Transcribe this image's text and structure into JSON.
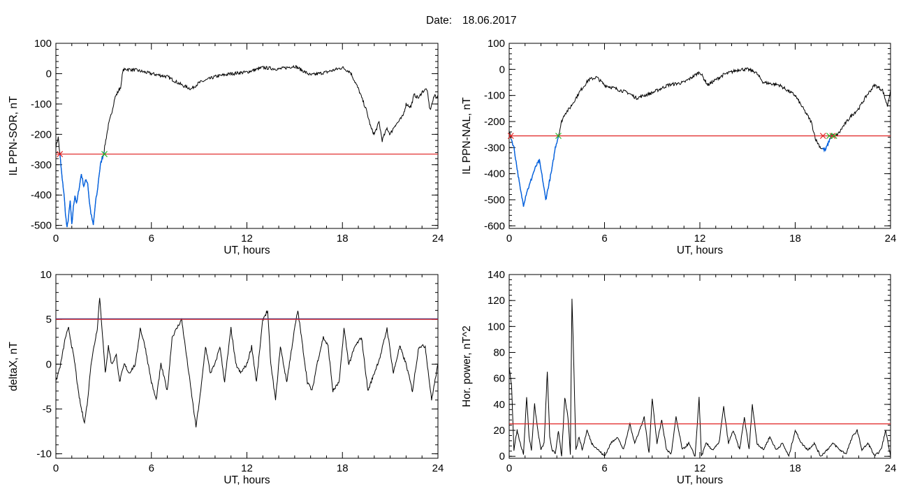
{
  "header": {
    "date_label": "Date:",
    "date_value": "18.06.2017"
  },
  "colors": {
    "threshold": "#e02020",
    "event_trace": "#0060e0",
    "trace": "#000000",
    "start_marker": "#e02020",
    "end_marker": "#20b020"
  },
  "chart_data": [
    {
      "id": "il-sor",
      "type": "line",
      "xlabel": "UT, hours",
      "ylabel": "IL PPN-SOR, nT",
      "xlim": [
        0,
        24
      ],
      "ylim": [
        -510,
        100
      ],
      "xticks": [
        "0",
        "6",
        "12",
        "18",
        "24"
      ],
      "yticks": [
        "100",
        "0",
        "-100",
        "-200",
        "-300",
        "-400",
        "-500"
      ],
      "ytick_values": [
        100,
        0,
        -100,
        -200,
        -300,
        -400,
        -500
      ],
      "threshold": -265,
      "x": [
        0,
        0.15,
        0.25,
        0.4,
        0.5,
        0.6,
        0.7,
        0.8,
        0.9,
        1.0,
        1.1,
        1.2,
        1.3,
        1.45,
        1.6,
        1.75,
        1.9,
        2.0,
        2.1,
        2.2,
        2.35,
        2.5,
        2.6,
        2.7,
        2.8,
        2.9,
        3.0,
        3.1,
        3.3,
        3.5,
        3.7,
        3.9,
        4.1,
        4.2,
        4.4,
        5,
        6,
        7,
        7.5,
        8,
        8.5,
        9,
        9.5,
        10,
        11,
        12,
        13,
        14,
        15,
        15.5,
        16,
        17,
        18,
        18.5,
        19,
        19.5,
        19.8,
        20,
        20.3,
        20.5,
        20.8,
        21,
        21.3,
        21.5,
        21.8,
        22,
        22.3,
        22.5,
        22.8,
        23,
        23.3,
        23.5,
        23.8,
        24
      ],
      "y": [
        -240,
        -210,
        -265,
        -350,
        -390,
        -460,
        -510,
        -470,
        -420,
        -500,
        -440,
        -400,
        -430,
        -380,
        -330,
        -370,
        -350,
        -360,
        -420,
        -460,
        -500,
        -420,
        -390,
        -340,
        -300,
        -280,
        -265,
        -230,
        -170,
        -130,
        -80,
        -60,
        -40,
        10,
        15,
        12,
        0,
        -10,
        -25,
        -40,
        -50,
        -30,
        -20,
        -10,
        0,
        5,
        20,
        15,
        25,
        10,
        -5,
        5,
        20,
        5,
        -50,
        -120,
        -180,
        -200,
        -160,
        -220,
        -180,
        -200,
        -170,
        -160,
        -140,
        -100,
        -110,
        -70,
        -80,
        -60,
        -50,
        -120,
        -70,
        -80
      ],
      "events": [
        [
          0.25,
          3.05
        ]
      ],
      "start_markers": [
        0.25
      ],
      "end_markers": [
        3.05
      ]
    },
    {
      "id": "il-nal",
      "type": "line",
      "xlabel": "UT, hours",
      "ylabel": "IL PPN-NAL, nT",
      "xlim": [
        0,
        24
      ],
      "ylim": [
        -610,
        100
      ],
      "xticks": [
        "0",
        "6",
        "12",
        "18",
        "24"
      ],
      "yticks": [
        "100",
        "0",
        "-100",
        "-200",
        "-300",
        "-400",
        "-500",
        "-600"
      ],
      "ytick_values": [
        100,
        0,
        -100,
        -200,
        -300,
        -400,
        -500,
        -600
      ],
      "threshold": -255,
      "x": [
        0,
        0.15,
        0.3,
        0.5,
        0.7,
        0.9,
        1.1,
        1.3,
        1.5,
        1.7,
        1.9,
        2.1,
        2.3,
        2.5,
        2.7,
        2.9,
        3.1,
        3.3,
        3.5,
        3.8,
        4,
        4.3,
        4.5,
        5,
        5.5,
        6,
        6.5,
        7,
        7.5,
        8,
        8.5,
        9,
        10,
        11,
        12,
        12.5,
        13,
        13.5,
        14,
        14.5,
        15,
        15.5,
        16,
        17,
        18,
        18.5,
        19,
        19.3,
        19.6,
        19.9,
        20.1,
        20.3,
        20.5,
        20.8,
        21,
        21.5,
        22,
        22.5,
        23,
        23.5,
        23.8,
        24
      ],
      "y": [
        -240,
        -270,
        -300,
        -380,
        -460,
        -520,
        -470,
        -440,
        -400,
        -370,
        -350,
        -420,
        -500,
        -440,
        -380,
        -300,
        -255,
        -200,
        -170,
        -150,
        -130,
        -100,
        -80,
        -40,
        -30,
        -60,
        -70,
        -80,
        -90,
        -110,
        -100,
        -90,
        -60,
        -50,
        -10,
        -60,
        -40,
        -20,
        -10,
        0,
        0,
        -10,
        -50,
        -60,
        -100,
        -150,
        -200,
        -270,
        -300,
        -310,
        -280,
        -250,
        -260,
        -240,
        -220,
        -180,
        -150,
        -100,
        -60,
        -80,
        -140,
        -80
      ],
      "events": [
        [
          0.1,
          3.1
        ],
        [
          19.7,
          20.4
        ]
      ],
      "start_markers": [
        0.1,
        19.75,
        20.35
      ],
      "end_markers": [
        3.1,
        20.15,
        20.45
      ]
    },
    {
      "id": "delta-x",
      "type": "line",
      "xlabel": "UT, hours",
      "ylabel": "deltaX, nT",
      "xlim": [
        0,
        24
      ],
      "ylim": [
        -10.5,
        10
      ],
      "xticks": [
        "0",
        "6",
        "12",
        "18",
        "24"
      ],
      "yticks": [
        "10",
        "5",
        "0",
        "-5",
        "-10"
      ],
      "ytick_values": [
        10,
        5,
        0,
        -5,
        -10
      ],
      "threshold": 5,
      "x": [
        0,
        0.3,
        0.6,
        0.8,
        1.0,
        1.2,
        1.4,
        1.6,
        1.8,
        2.0,
        2.2,
        2.4,
        2.6,
        2.75,
        2.9,
        3.1,
        3.3,
        3.5,
        3.8,
        4.0,
        4.3,
        4.6,
        5.0,
        5.3,
        5.6,
        6.0,
        6.3,
        6.6,
        7.0,
        7.3,
        7.6,
        7.9,
        8.2,
        8.5,
        8.8,
        9.1,
        9.4,
        9.7,
        10.0,
        10.3,
        10.6,
        11.0,
        11.3,
        11.6,
        12.0,
        12.3,
        12.6,
        13.0,
        13.3,
        13.5,
        13.8,
        14.1,
        14.5,
        15.0,
        15.2,
        15.5,
        15.8,
        16.1,
        16.4,
        16.8,
        17.1,
        17.4,
        17.8,
        18.1,
        18.4,
        18.8,
        19.2,
        19.6,
        20.0,
        20.4,
        20.8,
        21.2,
        21.6,
        22.0,
        22.4,
        22.8,
        23.2,
        23.6,
        24.0
      ],
      "y": [
        -2,
        0,
        3,
        4,
        2,
        0,
        -3,
        -5,
        -6.5,
        -4,
        0,
        2,
        4,
        7.5,
        4,
        -1,
        2,
        0,
        1,
        -2,
        0,
        -1,
        0,
        4,
        2,
        -2,
        -4,
        0,
        -3,
        3,
        4,
        5,
        1,
        -3,
        -7,
        -3,
        2,
        -1,
        0,
        2,
        -2,
        4,
        0,
        -1,
        0,
        2,
        -2,
        5,
        6,
        0,
        -4,
        2,
        -2,
        4,
        6,
        2,
        -2,
        -3,
        0,
        3,
        2,
        -3,
        -2,
        4,
        0,
        2,
        3,
        -3,
        -1,
        1,
        4,
        -1,
        2,
        0,
        -3,
        2,
        2,
        -4,
        0
      ]
    },
    {
      "id": "hor-power",
      "type": "line",
      "xlabel": "UT, hours",
      "ylabel": "Hor. power, nT^2",
      "xlim": [
        0,
        24
      ],
      "ylim": [
        -1.5,
        140
      ],
      "xticks": [
        "0",
        "6",
        "12",
        "18",
        "24"
      ],
      "yticks": [
        "140",
        "120",
        "100",
        "80",
        "60",
        "40",
        "20",
        "0"
      ],
      "ytick_values": [
        140,
        120,
        100,
        80,
        60,
        40,
        20,
        0
      ],
      "threshold": 25,
      "x": [
        0,
        0.15,
        0.3,
        0.5,
        0.7,
        0.9,
        1.1,
        1.25,
        1.4,
        1.6,
        1.8,
        2.0,
        2.2,
        2.4,
        2.55,
        2.7,
        2.9,
        3.1,
        3.3,
        3.5,
        3.7,
        3.85,
        3.95,
        4.05,
        4.2,
        4.4,
        4.6,
        4.9,
        5.2,
        5.6,
        6.0,
        6.4,
        6.8,
        7.2,
        7.6,
        7.9,
        8.2,
        8.5,
        8.8,
        9.0,
        9.3,
        9.6,
        9.9,
        10.2,
        10.5,
        10.9,
        11.3,
        11.7,
        11.95,
        12.1,
        12.4,
        12.8,
        13.2,
        13.5,
        13.8,
        14.1,
        14.5,
        14.8,
        15.1,
        15.3,
        15.6,
        16.0,
        16.4,
        16.8,
        17.2,
        17.6,
        18.0,
        18.4,
        18.8,
        19.2,
        19.6,
        20.0,
        20.4,
        20.8,
        21.2,
        21.6,
        21.9,
        22.2,
        22.6,
        23.0,
        23.4,
        23.7,
        24.0
      ],
      "y": [
        68,
        55,
        5,
        20,
        10,
        2,
        46,
        15,
        5,
        40,
        20,
        5,
        10,
        65,
        15,
        5,
        2,
        20,
        0,
        45,
        30,
        2,
        122,
        80,
        5,
        15,
        5,
        20,
        10,
        5,
        0,
        10,
        15,
        5,
        25,
        10,
        20,
        30,
        2,
        45,
        10,
        28,
        5,
        2,
        30,
        5,
        10,
        0,
        45,
        0,
        10,
        5,
        10,
        38,
        10,
        20,
        5,
        30,
        5,
        40,
        10,
        5,
        15,
        5,
        10,
        0,
        20,
        10,
        5,
        10,
        0,
        5,
        10,
        5,
        2,
        15,
        20,
        5,
        10,
        0,
        5,
        20,
        0
      ]
    }
  ]
}
